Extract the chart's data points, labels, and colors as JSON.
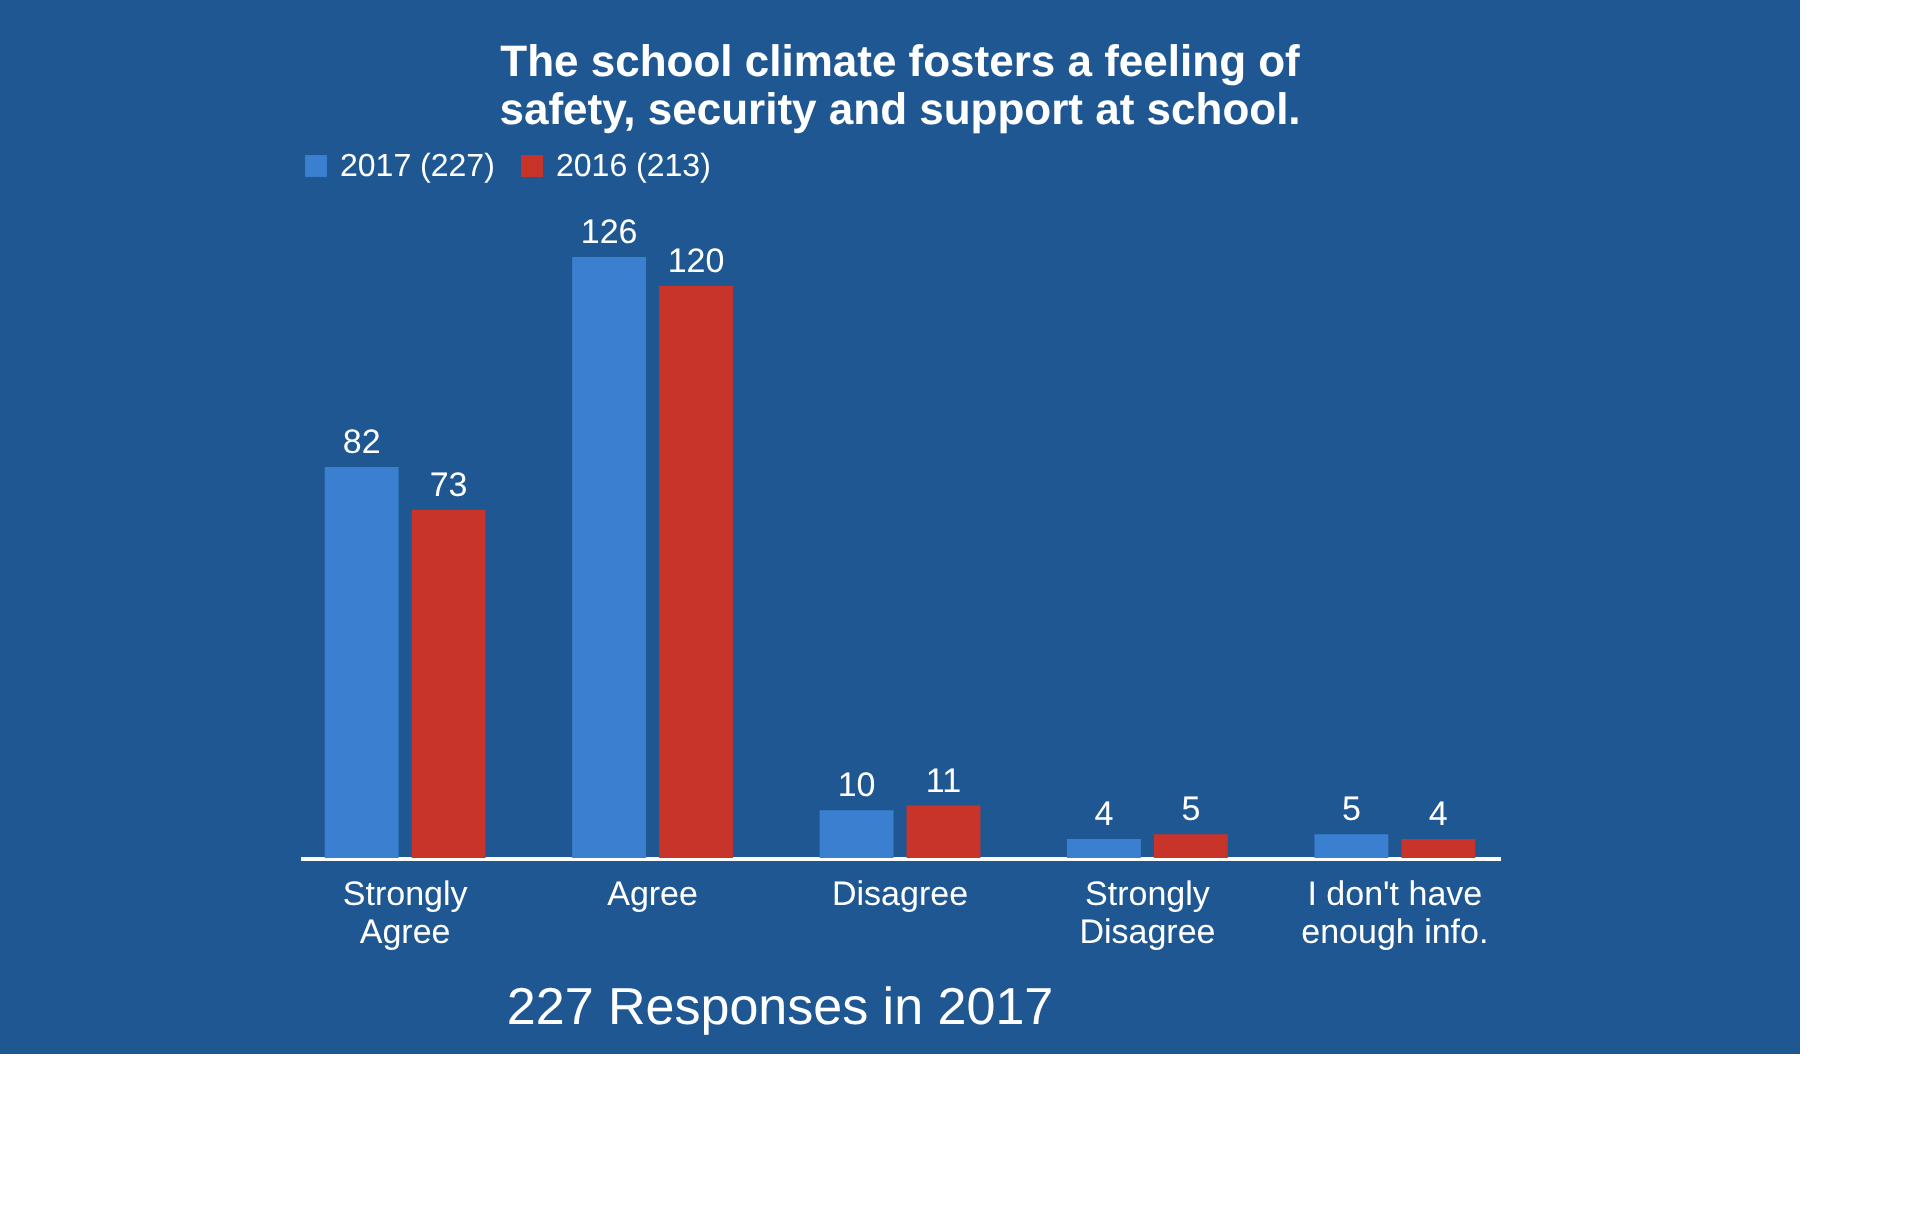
{
  "chart_data": {
    "type": "bar",
    "title": "The school climate fosters a feeling of\nsafety, security and support at school.",
    "categories": [
      "Strongly Agree",
      "Agree",
      "Disagree",
      "Strongly Disagree",
      "I don't have enough info."
    ],
    "series": [
      {
        "name": "2017 (227)",
        "color": "#3a7fd0",
        "values": [
          82,
          126,
          10,
          4,
          5
        ]
      },
      {
        "name": "2016 (213)",
        "color": "#c8332a",
        "values": [
          73,
          120,
          11,
          5,
          4
        ]
      }
    ],
    "data_labels": true,
    "legend": "top",
    "grid": false,
    "annotations": [
      "227 Responses in 2017"
    ]
  }
}
